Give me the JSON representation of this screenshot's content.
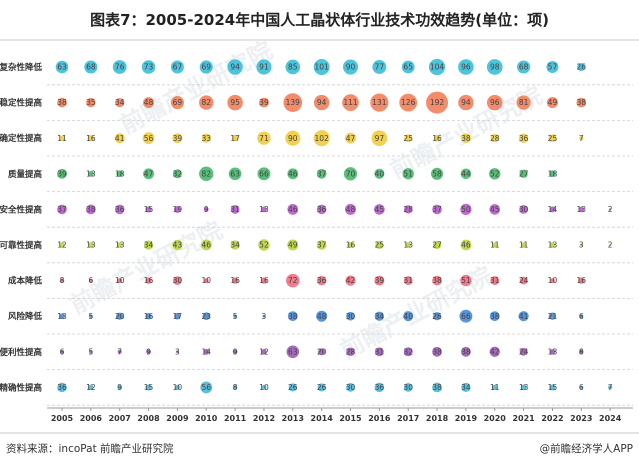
{
  "header": {
    "title": "图表7：2005-2024年中国人工晶状体行业技术功效趋势(单位：项)"
  },
  "footer": {
    "source": "资料来源：incoPat 前瞻产业研究院",
    "brand": "@前瞻经济学人APP"
  },
  "watermark": {
    "text": "前瞻产业研究院"
  },
  "chart_data": {
    "type": "scatter",
    "title": "图表7：2005-2024年中国人工晶状体行业技术功效趋势(单位：项)",
    "x": [
      "2005",
      "2006",
      "2007",
      "2008",
      "2009",
      "2010",
      "2011",
      "2012",
      "2013",
      "2014",
      "2015",
      "2016",
      "2017",
      "2018",
      "2019",
      "2020",
      "2021",
      "2022",
      "2023",
      "2024"
    ],
    "categories": [
      "复杂性降低",
      "稳定性提高",
      "确定性提高",
      "质量提高",
      "安全性提高",
      "可靠性提高",
      "成本降低",
      "风险降低",
      "便利性提高",
      "精确性提高"
    ],
    "colors": [
      "#2fb8d6",
      "#f07850",
      "#f0c832",
      "#3cb464",
      "#b450c8",
      "#b4d232",
      "#f06478",
      "#3c82d2",
      "#9650b4",
      "#3cb4dc"
    ],
    "series": [
      {
        "name": "复杂性降低",
        "values": [
          63,
          68,
          76,
          73,
          67,
          69,
          94,
          91,
          85,
          101,
          90,
          77,
          65,
          104,
          96,
          98,
          68,
          57,
          26,
          null
        ]
      },
      {
        "name": "稳定性提高",
        "values": [
          38,
          35,
          34,
          48,
          69,
          82,
          95,
          39,
          139,
          94,
          111,
          131,
          126,
          192,
          94,
          96,
          81,
          49,
          38,
          null
        ]
      },
      {
        "name": "确定性提高",
        "values": [
          11,
          16,
          41,
          56,
          39,
          33,
          17,
          71,
          90,
          102,
          47,
          97,
          25,
          16,
          38,
          28,
          36,
          25,
          7,
          null
        ]
      },
      {
        "name": "质量提高",
        "values": [
          39,
          13,
          18,
          47,
          32,
          82,
          63,
          66,
          46,
          37,
          70,
          40,
          51,
          58,
          44,
          52,
          27,
          18,
          null,
          null
        ]
      },
      {
        "name": "安全性提高",
        "values": [
          37,
          38,
          36,
          15,
          19,
          9,
          31,
          13,
          46,
          36,
          48,
          45,
          28,
          37,
          50,
          45,
          30,
          14,
          13,
          2
        ]
      },
      {
        "name": "可靠性提高",
        "values": [
          12,
          13,
          13,
          34,
          43,
          46,
          34,
          52,
          49,
          37,
          16,
          25,
          13,
          27,
          46,
          11,
          11,
          13,
          3,
          2
        ]
      },
      {
        "name": "成本降低",
        "values": [
          8,
          6,
          10,
          16,
          30,
          10,
          16,
          16,
          72,
          36,
          42,
          39,
          31,
          38,
          51,
          31,
          24,
          10,
          16,
          null
        ]
      },
      {
        "name": "风险降低",
        "values": [
          13,
          5,
          20,
          16,
          17,
          23,
          5,
          3,
          38,
          48,
          30,
          34,
          40,
          26,
          66,
          38,
          41,
          21,
          6,
          null
        ]
      },
      {
        "name": "便利性提高",
        "values": [
          6,
          5,
          7,
          9,
          3,
          14,
          9,
          12,
          63,
          20,
          28,
          31,
          32,
          38,
          38,
          42,
          24,
          13,
          8,
          null
        ]
      },
      {
        "name": "精确性提高",
        "values": [
          36,
          12,
          9,
          15,
          10,
          56,
          8,
          10,
          26,
          26,
          30,
          36,
          30,
          38,
          34,
          11,
          13,
          15,
          6,
          7
        ]
      }
    ]
  }
}
